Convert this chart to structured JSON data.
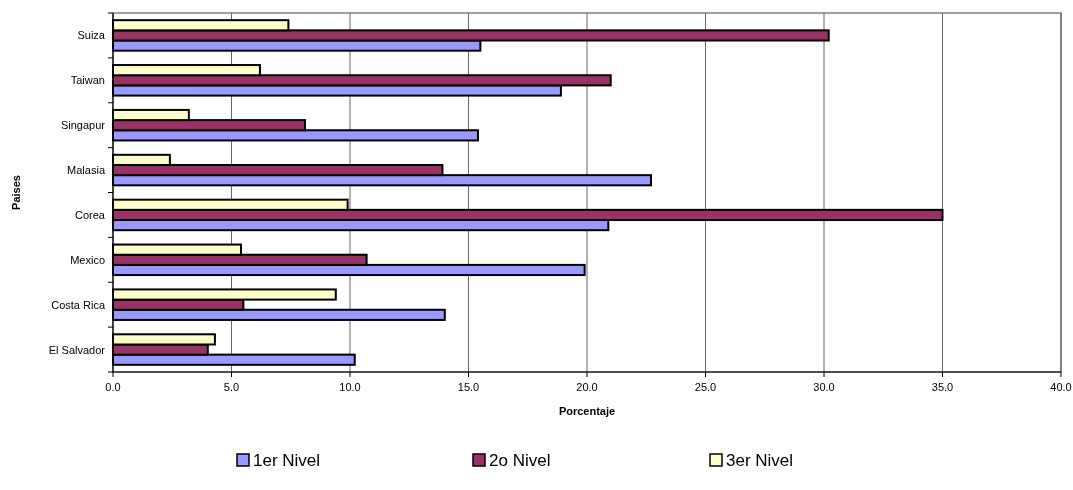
{
  "chart_data": {
    "type": "bar",
    "orientation": "horizontal",
    "xlabel": "Porcentaje",
    "ylabel": "Paises",
    "categories": [
      "Suiza",
      "Taiwan",
      "Singapur",
      "Malasia",
      "Corea",
      "Mexico",
      "Costa Rica",
      "El Salvador"
    ],
    "series": [
      {
        "name": "1er Nivel",
        "color": "#9999ff",
        "values": [
          15.5,
          18.9,
          15.4,
          22.7,
          20.9,
          19.9,
          14.0,
          10.2
        ]
      },
      {
        "name": "2o Nivel",
        "color": "#993366",
        "values": [
          30.2,
          21.0,
          8.1,
          13.9,
          35.0,
          10.7,
          5.5,
          4.0
        ]
      },
      {
        "name": "3er Nivel",
        "color": "#ffffcc",
        "values": [
          7.4,
          6.2,
          3.2,
          2.4,
          9.9,
          5.4,
          9.4,
          4.3
        ]
      }
    ],
    "xlim": [
      0,
      40
    ],
    "xticks": [
      {
        "value": 0,
        "label": "0.0"
      },
      {
        "value": 5,
        "label": "5.0"
      },
      {
        "value": 10,
        "label": "10.0"
      },
      {
        "value": 15,
        "label": "15.0"
      },
      {
        "value": 20,
        "label": "20.0"
      },
      {
        "value": 25,
        "label": "25.0"
      },
      {
        "value": 30,
        "label": "30.0"
      },
      {
        "value": 35,
        "label": "35.0"
      },
      {
        "value": 40,
        "label": "40.0"
      }
    ],
    "grid": "x",
    "legend": "bottom"
  }
}
